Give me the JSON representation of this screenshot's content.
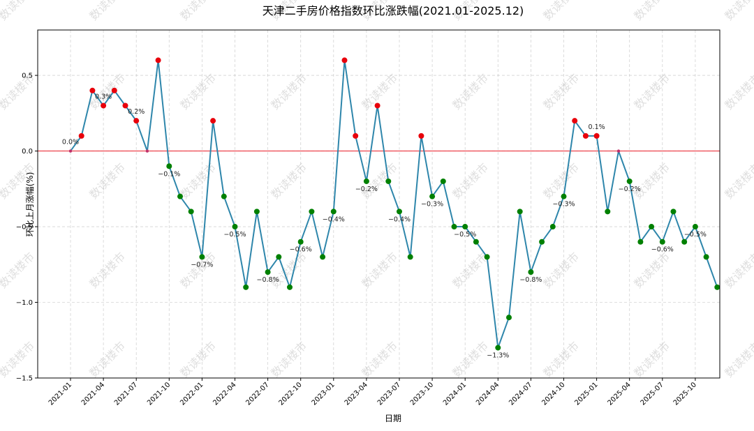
{
  "chart_data": {
    "type": "line",
    "title": "天津二手房价格指数环比涨跌幅(2021.01-2025.12)",
    "xlabel": "日期",
    "ylabel": "环比上月涨幅(%)",
    "ylim": [
      -1.5,
      0.8
    ],
    "yticks": [
      -1.5,
      -1.0,
      -0.5,
      0.0,
      0.5
    ],
    "ytick_labels": [
      "−1.5",
      "−1.0",
      "−0.5",
      "0.0",
      "0.5"
    ],
    "xtick_labels": [
      "2021-01",
      "2021-04",
      "2021-07",
      "2021-10",
      "2022-01",
      "2022-04",
      "2022-07",
      "2022-10",
      "2023-01",
      "2023-04",
      "2023-07",
      "2023-10",
      "2024-01",
      "2024-04",
      "2024-07",
      "2024-10",
      "2025-01",
      "2025-04",
      "2025-07",
      "2025-10"
    ],
    "grid": true,
    "reference_line": 0.0,
    "colors": {
      "line": "#2e86ab",
      "positive": "#e8000b",
      "negative": "#008000",
      "zero": "#c0306a",
      "reference": "#e8000b"
    },
    "watermark": "数读楼市",
    "months": [
      "2021-01",
      "2021-02",
      "2021-03",
      "2021-04",
      "2021-05",
      "2021-06",
      "2021-07",
      "2021-08",
      "2021-09",
      "2021-10",
      "2021-11",
      "2021-12",
      "2022-01",
      "2022-02",
      "2022-03",
      "2022-04",
      "2022-05",
      "2022-06",
      "2022-07",
      "2022-08",
      "2022-09",
      "2022-10",
      "2022-11",
      "2022-12",
      "2023-01",
      "2023-02",
      "2023-03",
      "2023-04",
      "2023-05",
      "2023-06",
      "2023-07",
      "2023-08",
      "2023-09",
      "2023-10",
      "2023-11",
      "2023-12",
      "2024-01",
      "2024-02",
      "2024-03",
      "2024-04",
      "2024-05",
      "2024-06",
      "2024-07",
      "2024-08",
      "2024-09",
      "2024-10",
      "2024-11",
      "2024-12",
      "2025-01",
      "2025-02",
      "2025-03",
      "2025-04",
      "2025-05",
      "2025-06",
      "2025-07",
      "2025-08",
      "2025-09",
      "2025-10",
      "2025-11",
      "2025-12"
    ],
    "values": [
      0.0,
      0.1,
      0.4,
      0.3,
      0.4,
      0.3,
      0.2,
      0.0,
      0.6,
      -0.1,
      -0.3,
      -0.4,
      -0.7,
      0.2,
      -0.3,
      -0.5,
      -0.9,
      -0.4,
      -0.8,
      -0.7,
      -0.9,
      -0.6,
      -0.4,
      -0.7,
      -0.4,
      0.6,
      0.1,
      -0.2,
      0.3,
      -0.2,
      -0.4,
      -0.7,
      0.1,
      -0.3,
      -0.2,
      -0.5,
      -0.5,
      -0.6,
      -0.7,
      -1.3,
      -1.1,
      -0.4,
      -0.8,
      -0.6,
      -0.5,
      -0.3,
      0.2,
      0.1,
      0.1,
      -0.4,
      0.0,
      -0.2,
      -0.6,
      -0.5,
      -0.6,
      -0.4,
      -0.6,
      -0.5,
      -0.7,
      -0.9
    ],
    "data_labels": [
      {
        "index": 0,
        "text": "0.0%"
      },
      {
        "index": 3,
        "text": "0.3%"
      },
      {
        "index": 6,
        "text": "0.2%"
      },
      {
        "index": 9,
        "text": "−0.1%"
      },
      {
        "index": 12,
        "text": "−0.7%"
      },
      {
        "index": 15,
        "text": "−0.5%"
      },
      {
        "index": 18,
        "text": "−0.8%"
      },
      {
        "index": 21,
        "text": "−0.6%"
      },
      {
        "index": 24,
        "text": "−0.4%"
      },
      {
        "index": 27,
        "text": "−0.2%"
      },
      {
        "index": 30,
        "text": "−0.4%"
      },
      {
        "index": 33,
        "text": "−0.3%"
      },
      {
        "index": 36,
        "text": "−0.5%"
      },
      {
        "index": 39,
        "text": "−1.3%"
      },
      {
        "index": 42,
        "text": "−0.8%"
      },
      {
        "index": 45,
        "text": "−0.3%"
      },
      {
        "index": 48,
        "text": "0.1%"
      },
      {
        "index": 51,
        "text": "−0.2%"
      },
      {
        "index": 54,
        "text": "−0.6%"
      },
      {
        "index": 57,
        "text": "−0.5%"
      }
    ]
  }
}
